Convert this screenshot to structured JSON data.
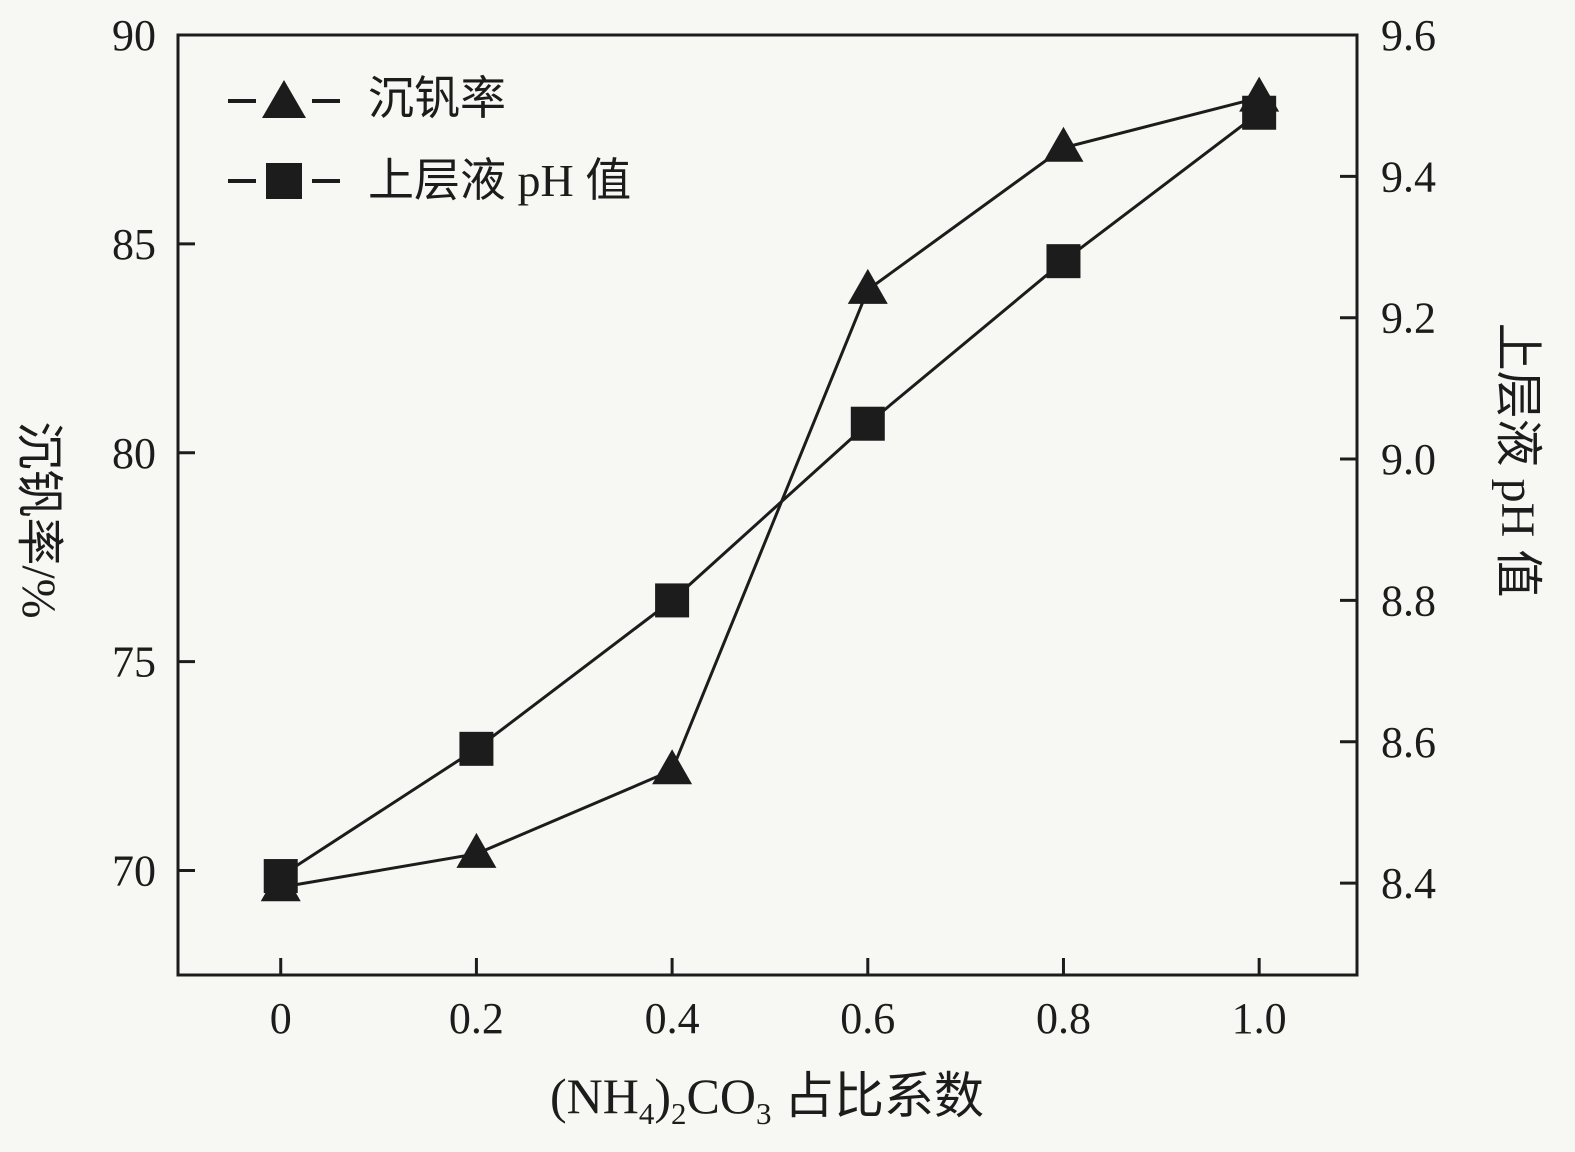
{
  "chart_data": {
    "type": "line",
    "x": [
      0,
      0.2,
      0.4,
      0.6,
      0.8,
      1.0
    ],
    "series": [
      {
        "name": "沉钒率",
        "axis": "left",
        "marker": "triangle",
        "values": [
          69.6,
          70.4,
          72.4,
          83.9,
          87.3,
          88.5
        ]
      },
      {
        "name": "上层液 pH 值",
        "axis": "right",
        "marker": "square",
        "values": [
          8.41,
          8.59,
          8.8,
          9.05,
          9.28,
          9.49
        ]
      }
    ],
    "ylabel_left": "沉钒率/%",
    "ylabel_right": "上层液 pH 值",
    "xlabel": {
      "seg1": "(NH",
      "sub1": "4",
      "seg2": ")",
      "sub2": "2",
      "seg3": "CO",
      "sub3": "3",
      "seg4": " 占比系数"
    },
    "x_ticks": [
      "0",
      "0.2",
      "0.4",
      "0.6",
      "0.8",
      "1.0"
    ],
    "x_tick_values": [
      0,
      0.2,
      0.4,
      0.6,
      0.8,
      1.0
    ],
    "left_ticks": [
      "70",
      "75",
      "80",
      "85",
      "90"
    ],
    "left_tick_values": [
      70,
      75,
      80,
      85,
      90
    ],
    "right_ticks": [
      "8.4",
      "8.6",
      "8.8",
      "9.0",
      "9.2",
      "9.4",
      "9.6"
    ],
    "right_tick_values": [
      8.4,
      8.6,
      8.8,
      9.0,
      9.2,
      9.4,
      9.6
    ],
    "xlim": [
      -0.105,
      1.1
    ],
    "ylim_left": [
      67.5,
      90
    ],
    "ylim_right": [
      8.27,
      9.6
    ],
    "grid": false,
    "legend_position": "upper-left-inside",
    "line_color": "#1c1c1c",
    "background_color": "#f7f7f4"
  }
}
